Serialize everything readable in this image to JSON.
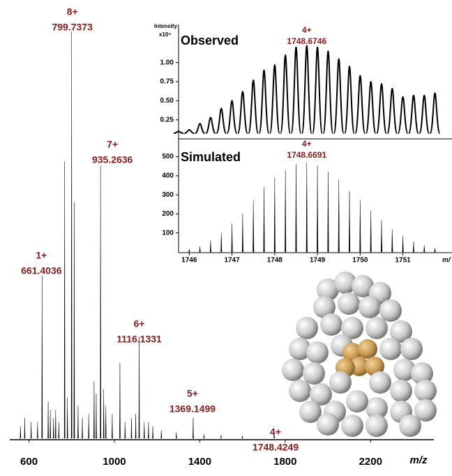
{
  "chart_data": [
    {
      "type": "stick",
      "xlabel": "m/z",
      "color": "#000000",
      "x": [
        560,
        580,
        610,
        640,
        661.4036,
        690,
        700,
        715,
        725,
        740,
        767,
        780,
        799.7373,
        812,
        830,
        850,
        880,
        905,
        915,
        935.2636,
        950,
        960,
        990,
        1026,
        1050,
        1080,
        1100,
        1116.1331,
        1140,
        1160,
        1180,
        1220,
        1290,
        1369.1499,
        1420,
        1500,
        1600,
        1748.4249
      ],
      "values": [
        3,
        5,
        4,
        4,
        40,
        9,
        7,
        5,
        7,
        4,
        68,
        10,
        100,
        58,
        8,
        5,
        6,
        14,
        11,
        67,
        12,
        8,
        6,
        18.5,
        4,
        5,
        6,
        25,
        4,
        4,
        3,
        2,
        1.5,
        5,
        1,
        0.8,
        0.6,
        1.5
      ],
      "xlim": [
        510,
        2490
      ],
      "xticks": [
        600,
        1000,
        1400,
        1800,
        2200
      ],
      "ylim": [
        0,
        100
      ],
      "annotations": [
        {
          "charge": "8+",
          "mz": "799.7373"
        },
        {
          "charge": "7+",
          "mz": "935.2636"
        },
        {
          "charge": "1+",
          "mz": "661.4036"
        },
        {
          "charge": "6+",
          "mz": "1116.1331"
        },
        {
          "charge": "5+",
          "mz": "1369.1499"
        },
        {
          "charge": "4+",
          "mz": "1748.4249"
        }
      ]
    },
    {
      "type": "profile",
      "title": "Observed",
      "ylabel": "Intensity",
      "yunit": "x10⁴",
      "color": "#000000",
      "x": [
        1745.75,
        1746,
        1746.25,
        1746.5,
        1746.75,
        1747,
        1747.25,
        1747.5,
        1747.75,
        1748,
        1748.25,
        1748.5,
        1748.75,
        1749,
        1749.25,
        1749.5,
        1749.75,
        1750,
        1750.25,
        1750.5,
        1750.75,
        1751,
        1751.25,
        1751.5,
        1751.75
      ],
      "values": [
        0.1,
        0.12,
        0.2,
        0.28,
        0.4,
        0.5,
        0.62,
        0.77,
        0.9,
        0.97,
        1.1,
        1.2,
        1.22,
        1.2,
        1.15,
        1.05,
        0.95,
        0.83,
        0.75,
        0.72,
        0.66,
        0.55,
        0.57,
        0.57,
        0.6
      ],
      "xlim": [
        1745.75,
        1752.1
      ],
      "ylim": [
        0,
        1.5
      ],
      "yticks": [
        {
          "value": 0.25,
          "label": "0.25"
        },
        {
          "value": 0.5,
          "label": "0.50"
        },
        {
          "value": 0.75,
          "label": "0.75"
        },
        {
          "value": 1,
          "label": "1.00"
        }
      ],
      "annotations": [
        {
          "charge": "4+",
          "mz": "1748.6746"
        }
      ]
    },
    {
      "type": "stick",
      "title": "Simulated",
      "xlabel": "m/",
      "color": "#000000",
      "x": [
        1746,
        1746.25,
        1746.5,
        1746.75,
        1747,
        1747.25,
        1747.5,
        1747.75,
        1748,
        1748.25,
        1748.5,
        1748.75,
        1749,
        1749.25,
        1749.5,
        1749.75,
        1750,
        1750.25,
        1750.5,
        1750.75,
        1751,
        1751.25,
        1751.5,
        1751.75
      ],
      "values": [
        15,
        30,
        60,
        100,
        150,
        200,
        270,
        340,
        390,
        430,
        460,
        470,
        455,
        420,
        380,
        320,
        270,
        215,
        165,
        120,
        85,
        55,
        35,
        20
      ],
      "xlim": [
        1745.75,
        1752.1
      ],
      "xticks": [
        1746,
        1747,
        1748,
        1749,
        1750,
        1751
      ],
      "ylim": [
        0,
        590
      ],
      "yticks": [
        100,
        200,
        300,
        400,
        500
      ],
      "annotations": [
        {
          "charge": "4+",
          "mz": "1748.6691"
        }
      ]
    }
  ]
}
